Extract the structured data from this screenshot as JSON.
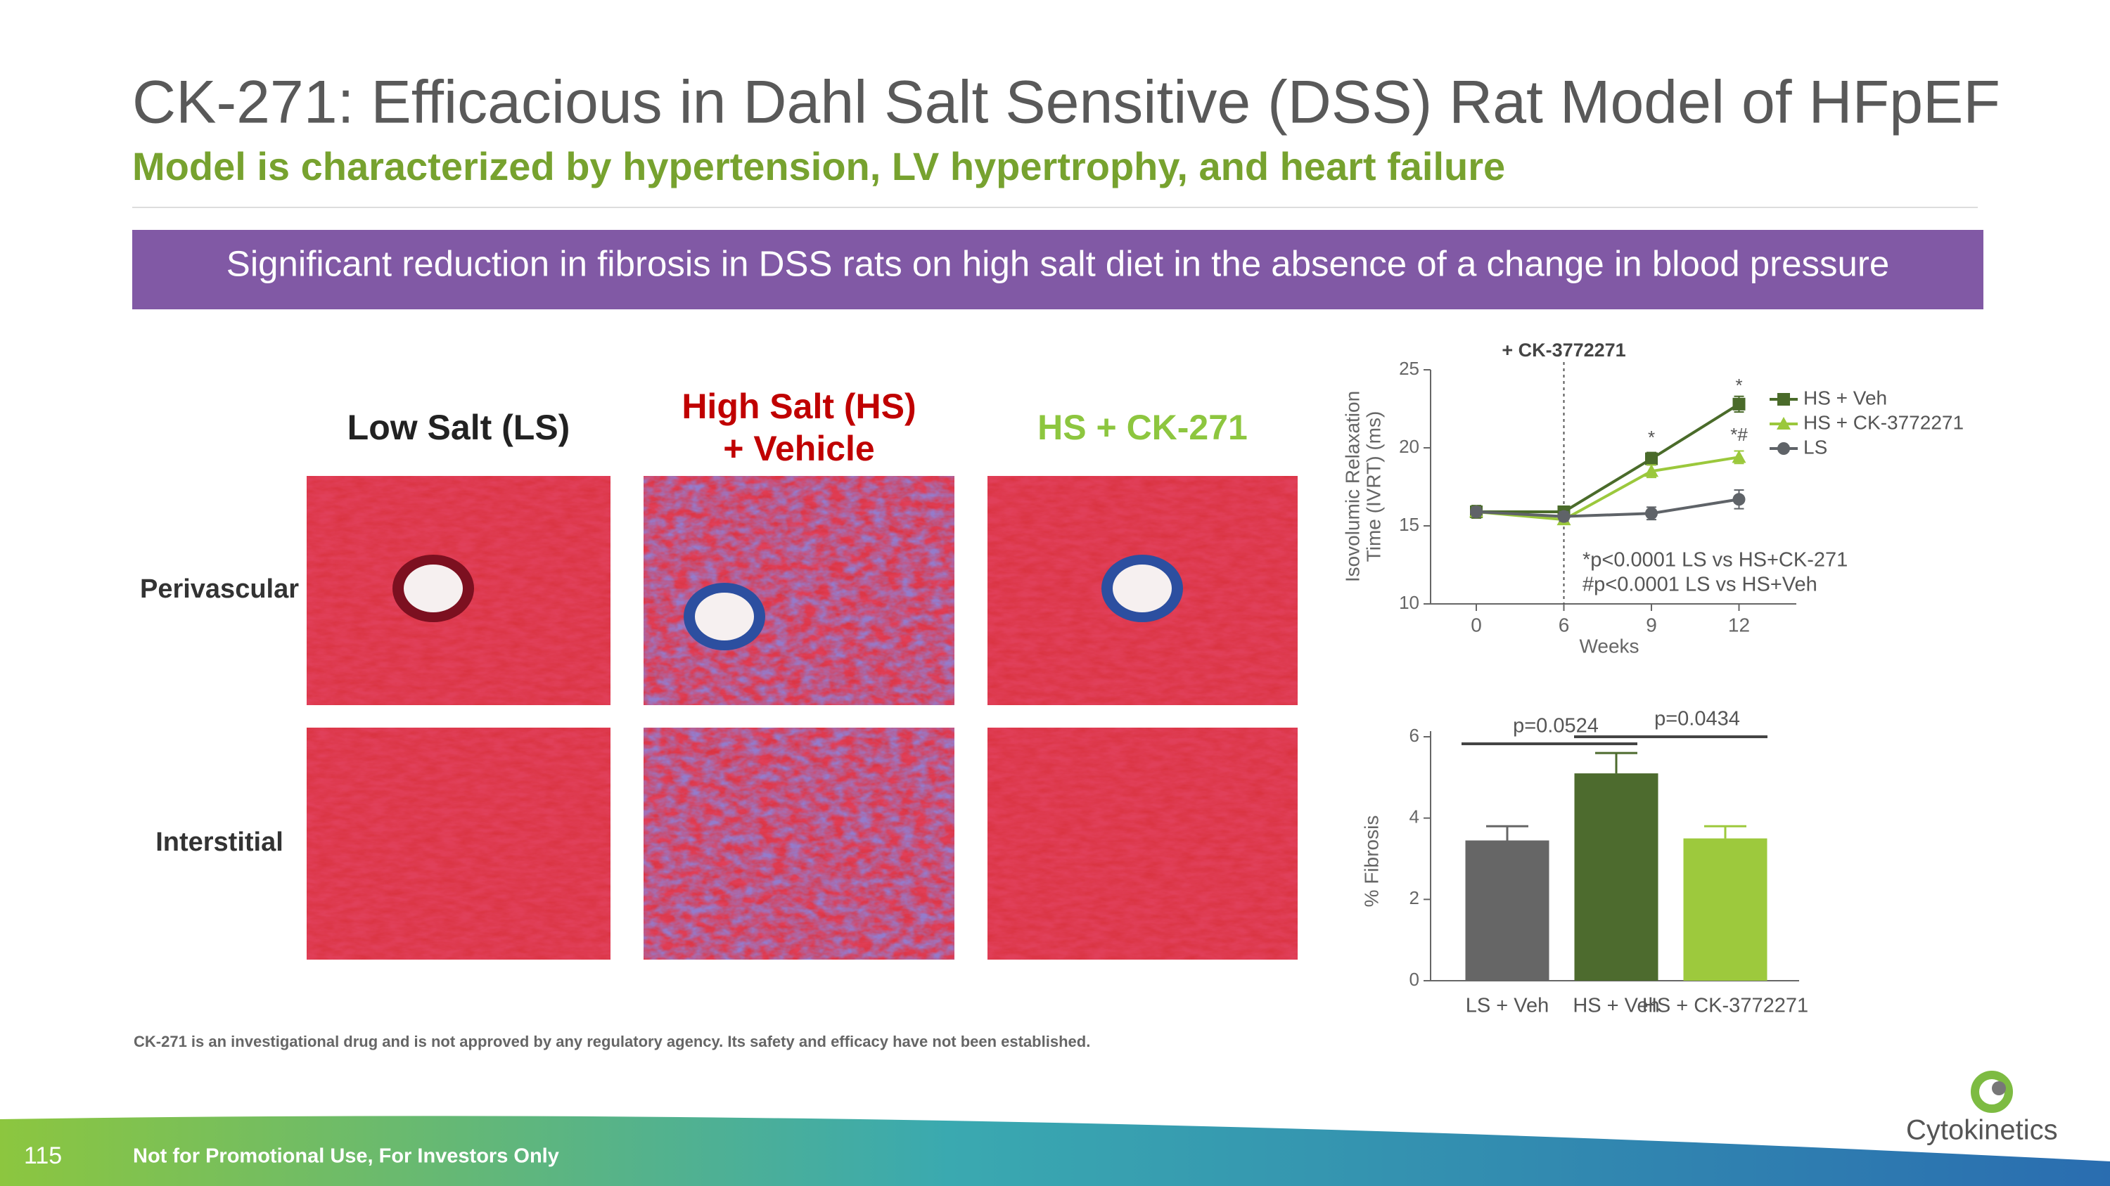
{
  "header": {
    "title": "CK-271: Efficacious in Dahl Salt Sensitive (DSS) Rat Model of HFpEF",
    "subtitle": "Model is characterized by hypertension, LV hypertrophy, and heart failure"
  },
  "banner": "Significant reduction in fibrosis in DSS rats on high salt diet in the absence of a change in blood pressure",
  "histology": {
    "columns": [
      [
        "Low Salt (LS)"
      ],
      [
        "High Salt (HS)",
        "+ Vehicle"
      ],
      [
        "HS + CK-271"
      ]
    ],
    "rows": [
      "Perivascular",
      "Interstitial"
    ]
  },
  "chart_data": [
    {
      "type": "line",
      "ylabel": [
        "Isovolumic Relaxation",
        "Time (IVRT) (ms)"
      ],
      "xlabel": "Weeks",
      "categories": [
        "0",
        "6",
        "9",
        "12"
      ],
      "ylim": [
        10,
        25
      ],
      "yticks": [
        10,
        15,
        20,
        25
      ],
      "marker_label": "+ CK-3772271",
      "sig_labels": [
        "*",
        "*",
        "*#"
      ],
      "footnotes": [
        "*p<0.0001 LS vs HS+CK-271",
        "#p<0.0001 LS vs HS+Veh"
      ],
      "series": [
        {
          "name": "HS + Veh",
          "color": "#4a6b2a",
          "marker": "square",
          "values": [
            15.9,
            15.9,
            19.3,
            22.8
          ],
          "errors": [
            0.4,
            0.3,
            0.4,
            0.5
          ]
        },
        {
          "name": "HS + CK-3772271",
          "color": "#9bc83c",
          "marker": "triangle",
          "values": [
            15.9,
            15.4,
            18.5,
            19.4
          ],
          "errors": [
            0.3,
            0.3,
            0.4,
            0.4
          ]
        },
        {
          "name": "LS",
          "color": "#5f6368",
          "marker": "circle",
          "values": [
            15.9,
            15.6,
            15.8,
            16.7
          ],
          "errors": [
            0.3,
            0.3,
            0.4,
            0.6
          ]
        }
      ]
    },
    {
      "type": "bar",
      "ylabel": "% Fibrosis",
      "categories": [
        "LS + Veh",
        "HS + Veh",
        "HS + CK-3772271"
      ],
      "values": [
        3.45,
        5.1,
        3.5
      ],
      "errors": [
        0.35,
        0.5,
        0.3
      ],
      "colors": [
        "#666666",
        "#4d6b2e",
        "#9dc93d"
      ],
      "ylim": [
        0,
        6
      ],
      "yticks": [
        0,
        2,
        4,
        6
      ],
      "comparisons": [
        "p=0.0524",
        "p=0.0434"
      ]
    }
  ],
  "disclaimer": "CK-271 is an investigational drug and is not approved by any regulatory agency. Its safety and efficacy have not been established.",
  "footer": {
    "page": "115",
    "note": "Not for Promotional Use, For Investors Only",
    "logo": "Cytokinetics"
  }
}
